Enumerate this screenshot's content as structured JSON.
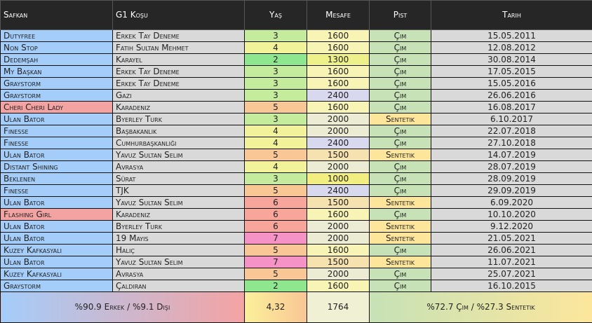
{
  "table": {
    "header": [
      "Safkan",
      "G1 Koşu",
      "Yaş",
      "Mesafe",
      "Pist",
      "Tarih"
    ],
    "rows": [
      [
        "Dutyfree",
        "Erkek Tay Deneme",
        "3",
        "1600",
        "Çim",
        "15.05.2011"
      ],
      [
        "Non Stop",
        "Fatih Sultan Mehmet",
        "4",
        "1600",
        "Çim",
        "12.08.2012"
      ],
      [
        "Dedemşah",
        "Karayel",
        "2",
        "1300",
        "Çim",
        "30.08.2014"
      ],
      [
        "My Başkan",
        "Erkek Tay Deneme",
        "3",
        "1600",
        "Çim",
        "17.05.2015"
      ],
      [
        "Graystorm",
        "Erkek Tay Deneme",
        "3",
        "1600",
        "Çim",
        "15.05.2016"
      ],
      [
        "Graystorm",
        "Gazi",
        "3",
        "2400",
        "Çim",
        "26.06.2016"
      ],
      [
        "Cheri Cheri Lady",
        "Karadeniz",
        "5",
        "1600",
        "Çim",
        "16.08.2017"
      ],
      [
        "Ulan Bator",
        "Byerley Turk",
        "3",
        "2000",
        "Sentetik",
        "6.10.2017"
      ],
      [
        "Finesse",
        "Başbakanlık",
        "4",
        "2000",
        "Çim",
        "22.07.2018"
      ],
      [
        "Finesse",
        "Cumhurbaşkanlığı",
        "4",
        "2400",
        "Çim",
        "27.10.2018"
      ],
      [
        "Ulan Bator",
        "Yavuz Sultan Selim",
        "5",
        "1500",
        "Sentetik",
        "14.07.2019"
      ],
      [
        "Distant Shining",
        "Avrasya",
        "4",
        "2000",
        "Çim",
        "28.07.2019"
      ],
      [
        "Beklenen",
        "Sürat",
        "3",
        "1000",
        "Çim",
        "28.09.2019"
      ],
      [
        "Finesse",
        "TJK",
        "5",
        "2400",
        "Çim",
        "29.09.2019"
      ],
      [
        "Ulan Bator",
        "Yavuz Sultan Selim",
        "6",
        "1500",
        "Sentetik",
        "6.09.2020"
      ],
      [
        "Flashing Girl",
        "Karadeniz",
        "6",
        "1600",
        "Çim",
        "10.10.2020"
      ],
      [
        "Ulan Bator",
        "Byerley Turk",
        "6",
        "2000",
        "Sentetik",
        "9.12.2020"
      ],
      [
        "Ulan Bator",
        "19 Mayıs",
        "7",
        "2000",
        "Sentetik",
        "21.05.2021"
      ],
      [
        "Kuzey Kafkasyali",
        "Haliç",
        "5",
        "1600",
        "Çim",
        "26.06.2021"
      ],
      [
        "Ulan Bator",
        "Yavuz Sultan Selim",
        "7",
        "1500",
        "Sentetik",
        "11.07.2021"
      ],
      [
        "Kuzey Kafkasyali",
        "Avrasya",
        "5",
        "2000",
        "Çim",
        "25.07.2021"
      ],
      [
        "Graystorm",
        "Çaldıran",
        "2",
        "1600",
        "Çim",
        "16.10.2015"
      ]
    ],
    "cell_colors": [
      [
        "#a4cdfa",
        "#d9d9d9",
        "#c4ec9c",
        "#f8f4b6",
        "#c6e2b6",
        "#d9d9d9"
      ],
      [
        "#a4cdfa",
        "#d9d9d9",
        "#f2f29a",
        "#f8f4b6",
        "#c6e2b6",
        "#d9d9d9"
      ],
      [
        "#a4cdfa",
        "#d9d9d9",
        "#8ee68e",
        "#eef08a",
        "#c6e2b6",
        "#d9d9d9"
      ],
      [
        "#a4cdfa",
        "#d9d9d9",
        "#c4ec9c",
        "#f8f4b6",
        "#c6e2b6",
        "#d9d9d9"
      ],
      [
        "#a4cdfa",
        "#d9d9d9",
        "#c4ec9c",
        "#f8f4b6",
        "#c6e2b6",
        "#d9d9d9"
      ],
      [
        "#a4cdfa",
        "#d9d9d9",
        "#c4ec9c",
        "#d8d8ee",
        "#c6e2b6",
        "#d9d9d9"
      ],
      [
        "#f4a3a3",
        "#d9d9d9",
        "#f9c696",
        "#f8f4b6",
        "#c6e2b6",
        "#d9d9d9"
      ],
      [
        "#a4cdfa",
        "#d9d9d9",
        "#c4ec9c",
        "#ececd4",
        "#fde69c",
        "#d9d9d9"
      ],
      [
        "#a4cdfa",
        "#d9d9d9",
        "#f2f29a",
        "#ececd4",
        "#c6e2b6",
        "#d9d9d9"
      ],
      [
        "#a4cdfa",
        "#d9d9d9",
        "#f2f29a",
        "#d8d8ee",
        "#c6e2b6",
        "#d9d9d9"
      ],
      [
        "#a4cdfa",
        "#d9d9d9",
        "#f9c696",
        "#f6e2ae",
        "#fde69c",
        "#d9d9d9"
      ],
      [
        "#a4cdfa",
        "#d9d9d9",
        "#f2f29a",
        "#ececd4",
        "#c6e2b6",
        "#d9d9d9"
      ],
      [
        "#a4cdfa",
        "#d9d9d9",
        "#c4ec9c",
        "#f2ee80",
        "#c6e2b6",
        "#d9d9d9"
      ],
      [
        "#a4cdfa",
        "#d9d9d9",
        "#f9c696",
        "#d8d8ee",
        "#c6e2b6",
        "#d9d9d9"
      ],
      [
        "#a4cdfa",
        "#d9d9d9",
        "#f8a69c",
        "#f6e2ae",
        "#fde69c",
        "#d9d9d9"
      ],
      [
        "#f4a3a3",
        "#d9d9d9",
        "#f8a69c",
        "#f8f4b6",
        "#c6e2b6",
        "#d9d9d9"
      ],
      [
        "#a4cdfa",
        "#d9d9d9",
        "#f8a69c",
        "#ececd4",
        "#fde69c",
        "#d9d9d9"
      ],
      [
        "#a4cdfa",
        "#d9d9d9",
        "#f592c6",
        "#ececd4",
        "#fde69c",
        "#d9d9d9"
      ],
      [
        "#a4cdfa",
        "#d9d9d9",
        "#f9c696",
        "#f8f4b6",
        "#c6e2b6",
        "#d9d9d9"
      ],
      [
        "#a4cdfa",
        "#d9d9d9",
        "#f592c6",
        "#f6e2ae",
        "#fde69c",
        "#d9d9d9"
      ],
      [
        "#a4cdfa",
        "#d9d9d9",
        "#f9c696",
        "#ececd4",
        "#c6e2b6",
        "#d9d9d9"
      ],
      [
        "#a4cdfa",
        "#d9d9d9",
        "#8ee68e",
        "#f8f4b6",
        "#c6e2b6",
        "#d9d9d9"
      ]
    ],
    "footer": [
      "%90.9 Erkek / %9.1 Dişi",
      "4,32",
      "1764",
      "%72.7 Çim / %27.3 Sentetik"
    ]
  }
}
